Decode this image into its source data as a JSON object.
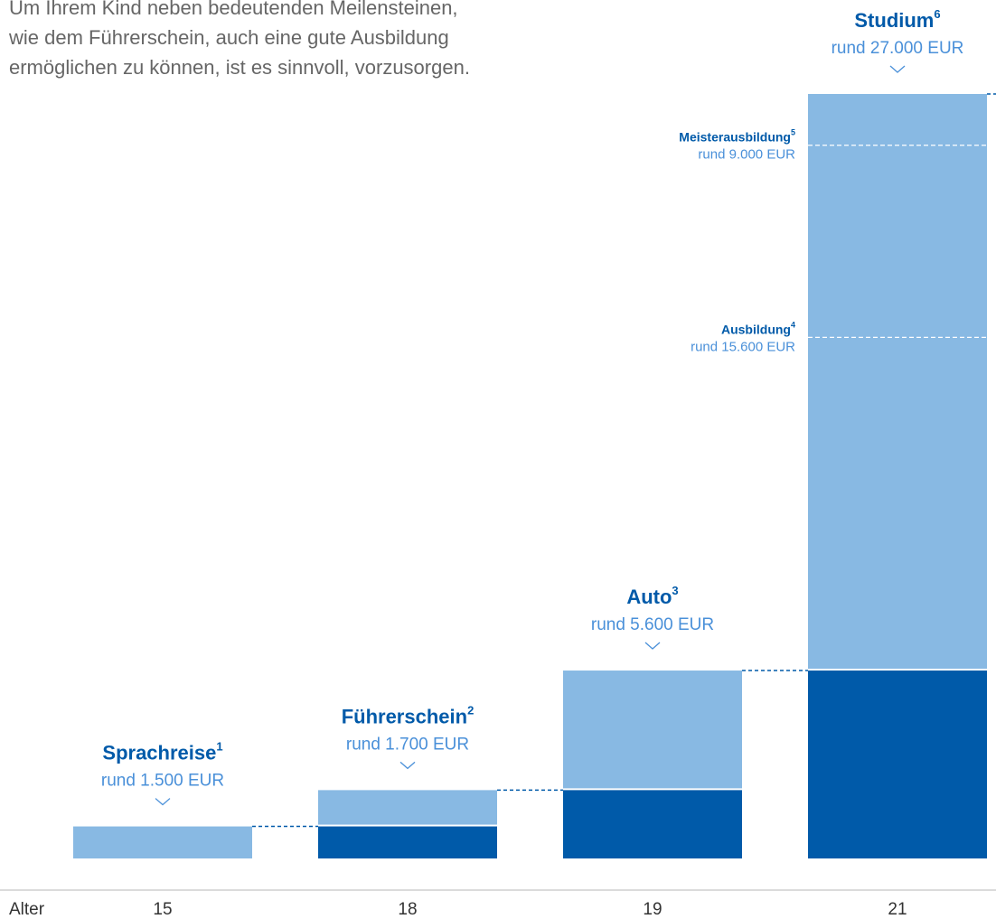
{
  "chart_data": {
    "type": "cumulative_step",
    "intro": [
      "Um Ihrem Kind neben bedeutenden Meilensteinen,",
      "wie dem Führerschein, auch eine gute Ausbildung",
      "ermöglichen zu können, ist es sinnvoll, vorzusorgen."
    ],
    "x_label": "Alter",
    "categories": [
      "15",
      "18",
      "19",
      "21"
    ],
    "items": [
      {
        "name": "Sprachreise",
        "footnote": "1",
        "value": 1500,
        "value_label": "rund 1.500 EUR"
      },
      {
        "name": "Führerschein",
        "footnote": "2",
        "value": 1700,
        "value_label": "rund 1.700 EUR"
      },
      {
        "name": "Auto",
        "footnote": "3",
        "value": 5600,
        "value_label": "rund 5.600 EUR"
      },
      {
        "name": "Studium",
        "footnote": "6",
        "value": 27000,
        "value_label": "rund 27.000 EUR"
      }
    ],
    "markers": [
      {
        "name": "Ausbildung",
        "footnote": "4",
        "value": 15600,
        "value_label": "rund 15.600 EUR"
      },
      {
        "name": "Meisterausbildung",
        "footnote": "5",
        "value": 9000,
        "value_label": "rund 9.000 EUR"
      }
    ],
    "colors": {
      "new": "#88b9e3",
      "previous": "#005aa9"
    }
  }
}
